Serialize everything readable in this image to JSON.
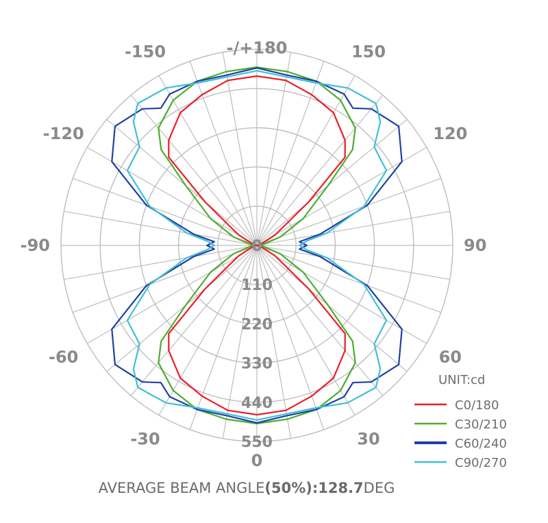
{
  "chart_data": {
    "type": "polar",
    "angle_labels": [
      {
        "deg": 0,
        "text": "0"
      },
      {
        "deg": 30,
        "text": "30"
      },
      {
        "deg": 60,
        "text": "60"
      },
      {
        "deg": 90,
        "text": "90"
      },
      {
        "deg": 120,
        "text": "120"
      },
      {
        "deg": 150,
        "text": "150"
      },
      {
        "deg": 180,
        "text": "-/+180"
      },
      {
        "deg": -150,
        "text": "-150"
      },
      {
        "deg": -120,
        "text": "-120"
      },
      {
        "deg": -90,
        "text": "-90"
      },
      {
        "deg": -60,
        "text": "-60"
      },
      {
        "deg": -30,
        "text": "-30"
      }
    ],
    "radial_ticks": [
      "0",
      "110",
      "220",
      "330",
      "440",
      "550"
    ],
    "radial_max": 550,
    "angular_grid_step_deg": 10,
    "grid": true,
    "unit_label": "UNIT:cd",
    "legend_position": "bottom-right",
    "series": [
      {
        "name": "C0/180",
        "color": "#ee1c25",
        "angles": [
          0,
          10,
          20,
          30,
          40,
          45,
          50,
          60,
          70,
          80,
          90
        ],
        "values": [
          475,
          470,
          450,
          430,
          385,
          350,
          190,
          60,
          15,
          5,
          0
        ]
      },
      {
        "name": "C30/210",
        "color": "#4cae2f",
        "angles": [
          0,
          10,
          20,
          30,
          40,
          45,
          50,
          60,
          70,
          80,
          90
        ],
        "values": [
          500,
          495,
          490,
          470,
          430,
          380,
          260,
          150,
          70,
          20,
          10
        ]
      },
      {
        "name": "C60/240",
        "color": "#1f3fa6",
        "angles": [
          0,
          10,
          20,
          30,
          35,
          40,
          50,
          60,
          70,
          80,
          85,
          90
        ],
        "values": [
          498,
          485,
          490,
          490,
          470,
          500,
          520,
          470,
          330,
          180,
          120,
          140
        ]
      },
      {
        "name": "C90/270",
        "color": "#3fbfd6",
        "angles": [
          0,
          10,
          20,
          30,
          40,
          45,
          50,
          60,
          70,
          80,
          85,
          90
        ],
        "values": [
          490,
          480,
          485,
          510,
          520,
          490,
          430,
          420,
          320,
          200,
          140,
          120
        ]
      }
    ],
    "caption": {
      "prefix": "AVERAGE BEAM ANGLE",
      "bold": "(50%):128.7",
      "suffix": "DEG"
    }
  }
}
